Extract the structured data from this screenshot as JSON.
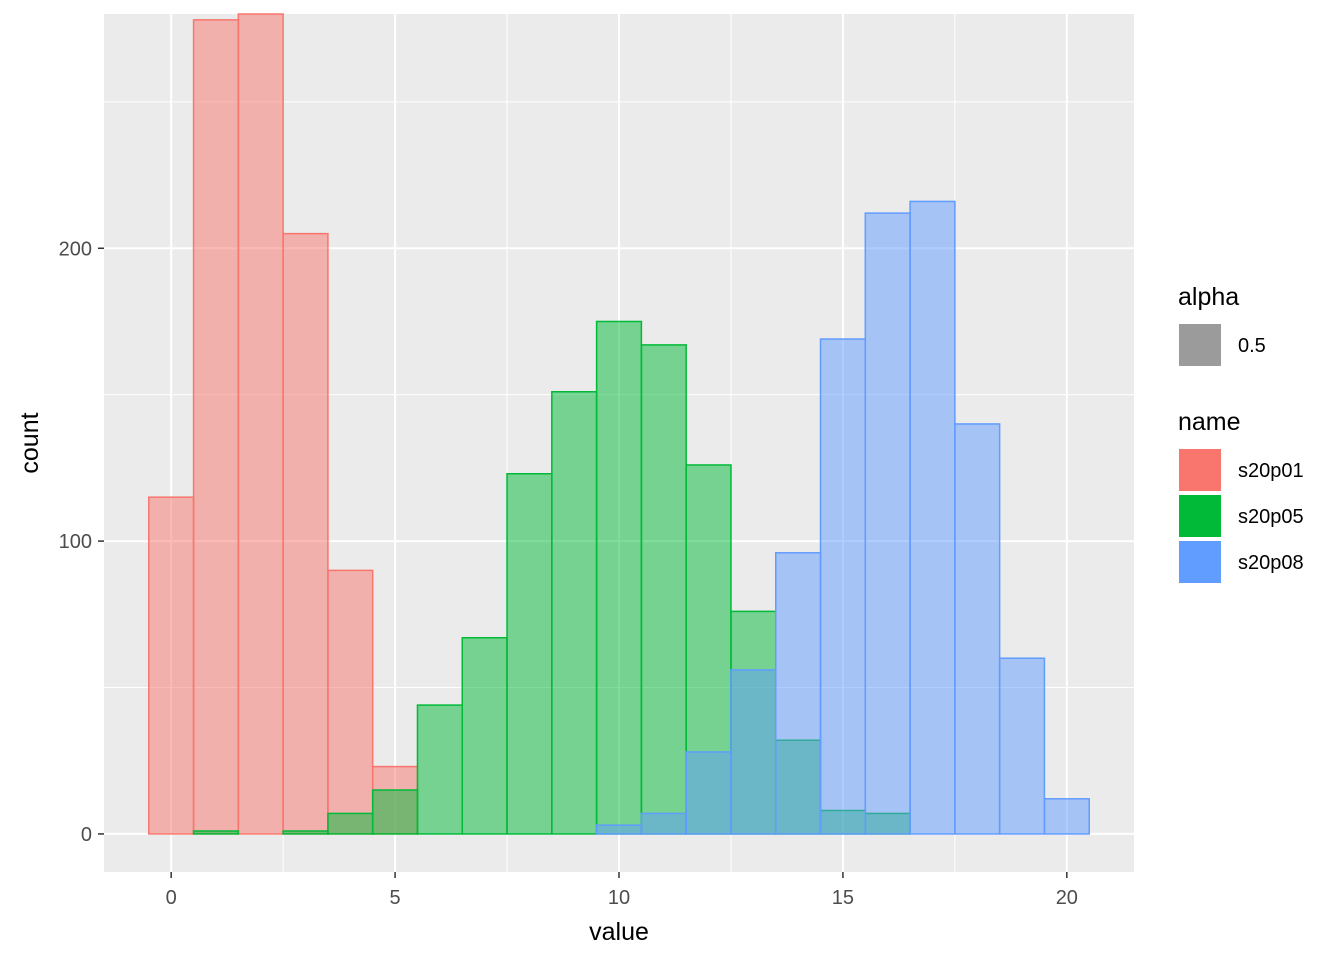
{
  "chart_data": {
    "type": "bar",
    "subtype": "overlapping-histogram",
    "xlabel": "value",
    "ylabel": "count",
    "xlim": [
      -1.5,
      21.5
    ],
    "ylim": [
      -13,
      280
    ],
    "x_ticks": [
      0,
      5,
      10,
      15,
      20
    ],
    "y_ticks": [
      0,
      100,
      200
    ],
    "bin_width": 1,
    "grid": true,
    "panel_background": "#ebebeb",
    "bar_alpha": 0.5,
    "legend_position": "right",
    "legends": [
      {
        "title": "alpha",
        "entries": [
          {
            "label": "0.5",
            "color": "#9b9b9b"
          }
        ]
      },
      {
        "title": "name",
        "entries": [
          {
            "label": "s20p01",
            "color": "#F8766D"
          },
          {
            "label": "s20p05",
            "color": "#00BA38"
          },
          {
            "label": "s20p08",
            "color": "#619CFF"
          }
        ]
      }
    ],
    "series": [
      {
        "name": "s20p01",
        "color": "#F8766D",
        "x": [
          0,
          1,
          2,
          3,
          4,
          5
        ],
        "values": [
          115,
          278,
          280,
          205,
          90,
          23
        ]
      },
      {
        "name": "s20p05",
        "color": "#00BA38",
        "x": [
          1,
          2,
          3,
          4,
          5,
          6,
          7,
          8,
          9,
          10,
          11,
          12,
          13,
          14,
          15,
          16
        ],
        "values": [
          1,
          0,
          1,
          7,
          15,
          44,
          67,
          123,
          151,
          175,
          167,
          126,
          76,
          32,
          8,
          7
        ]
      },
      {
        "name": "s20p08",
        "color": "#619CFF",
        "x": [
          10,
          11,
          12,
          13,
          14,
          15,
          16,
          17,
          18,
          19,
          20
        ],
        "values": [
          3,
          7,
          28,
          56,
          96,
          169,
          212,
          216,
          140,
          60,
          12
        ]
      }
    ]
  }
}
